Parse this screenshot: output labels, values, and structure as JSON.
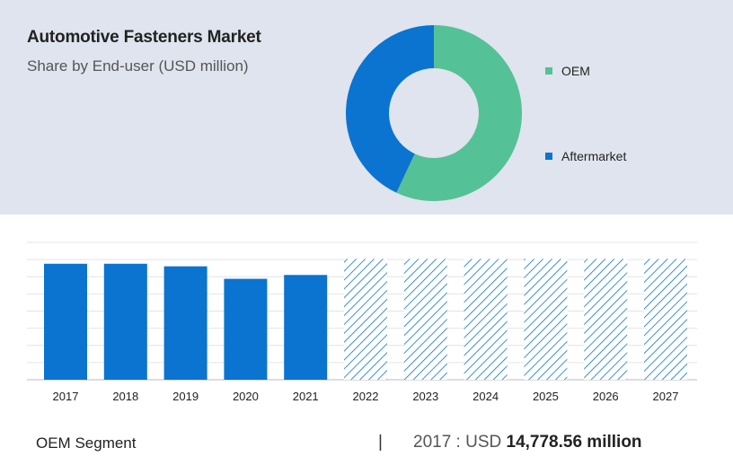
{
  "header": {
    "title": "Automotive Fasteners Market",
    "subtitle": "Share by End-user (USD million)"
  },
  "chart_data": [
    {
      "type": "pie",
      "donut": true,
      "labels": [
        "OEM",
        "Aftermarket"
      ],
      "values": [
        57,
        43
      ],
      "colors": [
        "#55c196",
        "#0a74d0"
      ],
      "legend_position": "right"
    },
    {
      "type": "bar",
      "categories": [
        "2017",
        "2018",
        "2019",
        "2020",
        "2021",
        "2022",
        "2023",
        "2024",
        "2025",
        "2026",
        "2027"
      ],
      "values": [
        14778.56,
        14780,
        14450,
        12860,
        13350,
        15400,
        15400,
        15400,
        15400,
        15400,
        15400
      ],
      "forecast_from": "2022",
      "ylim": [
        0,
        17500
      ],
      "grid": true,
      "color": "#0a74d0"
    }
  ],
  "footer": {
    "segment_label": "OEM Segment",
    "divider": "|",
    "year_prefix": "2017 : USD ",
    "value_text": "14,778.56 million"
  }
}
